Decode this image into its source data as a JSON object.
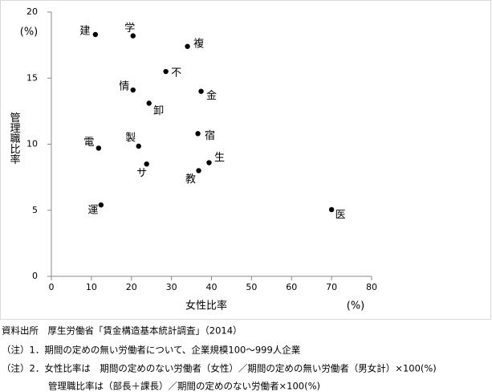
{
  "chart_data": {
    "type": "scatter",
    "y_label": "管理職比率",
    "y_unit": "(%)",
    "x_label": "女性比率",
    "x_unit": "(%)",
    "labels": [
      "建",
      "学",
      "複",
      "不",
      "情",
      "金",
      "卸",
      "宿",
      "製",
      "電",
      "生",
      "サ",
      "教",
      "運",
      "医"
    ],
    "x": [
      11,
      20.4,
      34,
      28.6,
      20.4,
      37.4,
      24.4,
      36.6,
      21.8,
      11.8,
      39.4,
      23.8,
      36.8,
      12.4,
      70
    ],
    "values": [
      18.3,
      18.2,
      17.4,
      15.5,
      14.1,
      14.0,
      13.1,
      10.8,
      9.85,
      9.7,
      8.6,
      8.5,
      8.0,
      5.4,
      5.05
    ],
    "color": "#000000",
    "xlim": [
      0,
      80
    ],
    "xticks": [
      0,
      10,
      20,
      30,
      40,
      50,
      60,
      70,
      80
    ],
    "ylim": [
      0,
      20
    ],
    "yticks": [
      0,
      5,
      10,
      15,
      20
    ]
  },
  "notes": [
    "資料出所　厚生労働省「賃金構造基本統計調査」（2014）",
    "（注）1．期間の定めの無い労働者について、企業規模100～999人企業",
    "（注）2．女性比率は　期間の定めのない労働者（女性）／期間の定めの無い労働者（男女計）×100(%)",
    "管理職比率は（部長＋課長）／期間の定めのない労働者×100(%)"
  ]
}
